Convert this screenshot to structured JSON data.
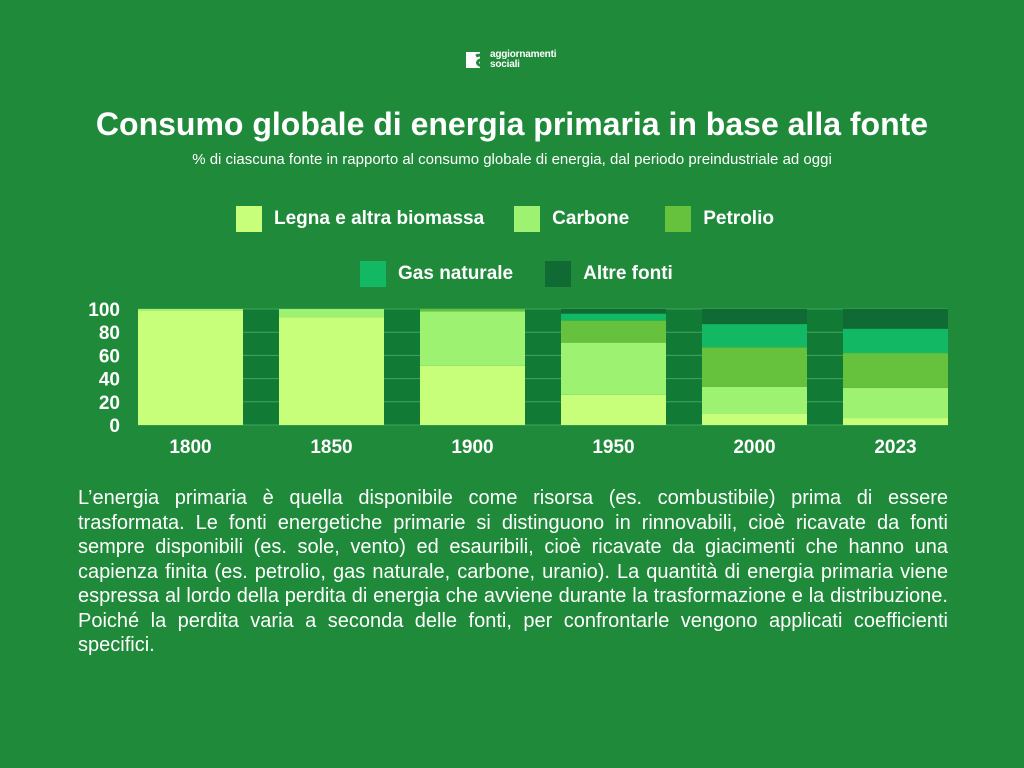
{
  "logo": {
    "line1": "aggiornamenti",
    "line2": "sociali",
    "icon": "aggiornamenti-sociali-logo-icon"
  },
  "header": {
    "title": "Consumo globale di energia primaria in base alla fonte",
    "subtitle": "% di ciascuna fonte in rapporto al consumo globale di energia, dal periodo preindustriale ad oggi"
  },
  "legend": [
    {
      "label": "Legna e altra biomassa",
      "color": "#c8ff7a"
    },
    {
      "label": "Carbone",
      "color": "#9ef271"
    },
    {
      "label": "Petrolio",
      "color": "#66c23c"
    },
    {
      "label": "Gas naturale",
      "color": "#13b865"
    },
    {
      "label": "Altre fonti",
      "color": "#106a34"
    }
  ],
  "chart_data": {
    "type": "bar",
    "stacked": true,
    "categories": [
      "1800",
      "1850",
      "1900",
      "1950",
      "2000",
      "2023"
    ],
    "series": [
      {
        "name": "Legna e altra biomassa",
        "color": "#c8ff7a",
        "values": [
          99,
          93,
          51,
          26,
          10,
          6
        ]
      },
      {
        "name": "Carbone",
        "color": "#9ef271",
        "values": [
          1,
          7,
          47,
          45,
          23,
          26
        ]
      },
      {
        "name": "Petrolio",
        "color": "#66c23c",
        "values": [
          0,
          0,
          2,
          19,
          34,
          30
        ]
      },
      {
        "name": "Gas naturale",
        "color": "#13b865",
        "values": [
          0,
          0,
          0,
          6,
          20,
          21
        ]
      },
      {
        "name": "Altre fonti",
        "color": "#106a34",
        "values": [
          0,
          0,
          0,
          4,
          13,
          17
        ]
      }
    ],
    "yticks": [
      "0",
      "20",
      "40",
      "60",
      "80",
      "100"
    ],
    "ylim": [
      0,
      100
    ],
    "grid": true,
    "legend_position": "top"
  },
  "body": {
    "text": "L’energia primaria è quella disponibile come risorsa (es. combustibile) prima di essere trasformata. Le fonti energetiche primarie si distinguono in rinnovabili, cioè ricavate da fonti sempre disponibili (es. sole, vento) ed esauribili, cioè ricavate da giacimenti che hanno una capienza finita (es. petrolio, gas naturale, carbone, uranio). La quantità di energia primaria viene espressa al lordo della perdita di energia che avviene durante la trasformazione e la distribuzione. Poiché la perdita varia a seconda delle fonti, per confrontarle vengono applicati coefficienti specifici."
  }
}
